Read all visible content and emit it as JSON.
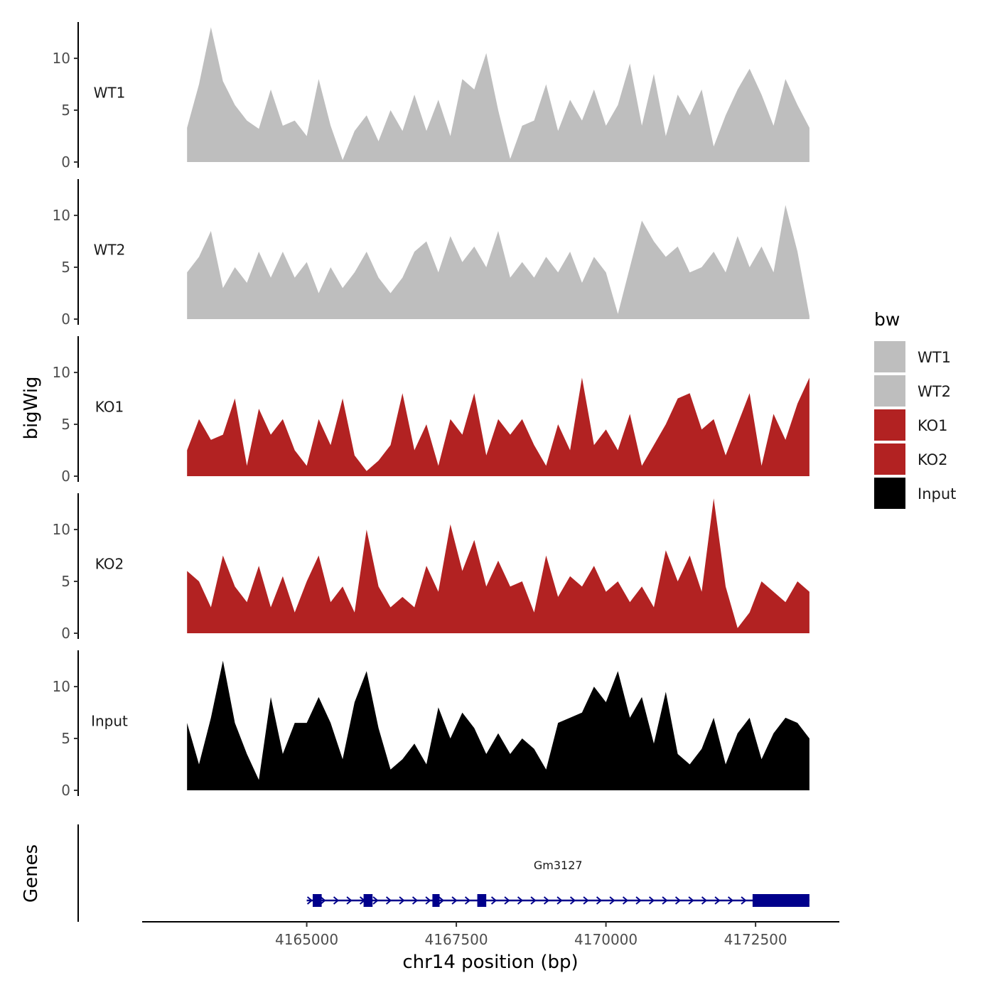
{
  "chart_data": {
    "type": "area",
    "title": "",
    "ylabel": "bigWig",
    "genes_ylabel": "Genes",
    "xlabel": "chr14 position (bp)",
    "xlim": [
      4162250,
      4173900
    ],
    "x_ticks": [
      4165000,
      4167500,
      4170000,
      4172500
    ],
    "x_tick_labels": [
      "4165000",
      "4167500",
      "4170000",
      "4172500"
    ],
    "ylim": [
      0,
      13.5
    ],
    "y_ticks": [
      0,
      5,
      10
    ],
    "y_tick_labels": [
      "0",
      "5",
      "10"
    ],
    "legend": {
      "title": "bw",
      "position": "right",
      "entries": [
        {
          "name": "WT1",
          "color": "#bebebe"
        },
        {
          "name": "WT2",
          "color": "#bebebe"
        },
        {
          "name": "KO1",
          "color": "#b22222"
        },
        {
          "name": "KO2",
          "color": "#b22222"
        },
        {
          "name": "Input",
          "color": "#000000"
        }
      ]
    },
    "series": [
      {
        "name": "WT1",
        "color": "#bebebe",
        "x": [
          4163000,
          4163200,
          4163400,
          4163600,
          4163800,
          4164000,
          4164200,
          4164400,
          4164600,
          4164800,
          4165000,
          4165200,
          4165400,
          4165600,
          4165800,
          4166000,
          4166200,
          4166400,
          4166600,
          4166800,
          4167000,
          4167200,
          4167400,
          4167600,
          4167800,
          4168000,
          4168200,
          4168400,
          4168600,
          4168800,
          4169000,
          4169200,
          4169400,
          4169600,
          4169800,
          4170000,
          4170200,
          4170400,
          4170600,
          4170800,
          4171000,
          4171200,
          4171400,
          4171600,
          4171800,
          4172000,
          4172200,
          4172400,
          4172600,
          4172800,
          4173000,
          4173200,
          4173400
        ],
        "values": [
          3.3,
          7.5,
          13.0,
          7.8,
          5.5,
          4.0,
          3.2,
          7.0,
          3.5,
          4.0,
          2.5,
          8.0,
          3.5,
          0.2,
          3.0,
          4.5,
          2.0,
          5.0,
          3.0,
          6.5,
          3.0,
          6.0,
          2.5,
          8.0,
          7.0,
          10.5,
          5.0,
          0.3,
          3.5,
          4.0,
          7.5,
          3.0,
          6.0,
          4.0,
          7.0,
          3.5,
          5.5,
          9.5,
          3.5,
          8.5,
          2.5,
          6.5,
          4.5,
          7.0,
          1.5,
          4.5,
          7.0,
          9.0,
          6.5,
          3.5,
          8.0,
          5.5,
          3.3
        ]
      },
      {
        "name": "WT2",
        "color": "#bebebe",
        "x": [
          4163000,
          4163200,
          4163400,
          4163600,
          4163800,
          4164000,
          4164200,
          4164400,
          4164600,
          4164800,
          4165000,
          4165200,
          4165400,
          4165600,
          4165800,
          4166000,
          4166200,
          4166400,
          4166600,
          4166800,
          4167000,
          4167200,
          4167400,
          4167600,
          4167800,
          4168000,
          4168200,
          4168400,
          4168600,
          4168800,
          4169000,
          4169200,
          4169400,
          4169600,
          4169800,
          4170000,
          4170200,
          4170400,
          4170600,
          4170800,
          4171000,
          4171200,
          4171400,
          4171600,
          4171800,
          4172000,
          4172200,
          4172400,
          4172600,
          4172800,
          4173000,
          4173200,
          4173400
        ],
        "values": [
          4.5,
          6.0,
          8.5,
          3.0,
          5.0,
          3.5,
          6.5,
          4.0,
          6.5,
          4.0,
          5.5,
          2.5,
          5.0,
          3.0,
          4.5,
          6.5,
          4.0,
          2.5,
          4.0,
          6.5,
          7.5,
          4.5,
          8.0,
          5.5,
          7.0,
          5.0,
          8.5,
          4.0,
          5.5,
          4.0,
          6.0,
          4.5,
          6.5,
          3.5,
          6.0,
          4.5,
          0.5,
          5.0,
          9.5,
          7.5,
          6.0,
          7.0,
          4.5,
          5.0,
          6.5,
          4.5,
          8.0,
          5.0,
          7.0,
          4.5,
          11.0,
          6.5,
          0.3
        ]
      },
      {
        "name": "KO1",
        "color": "#b22222",
        "x": [
          4163000,
          4163200,
          4163400,
          4163600,
          4163800,
          4164000,
          4164200,
          4164400,
          4164600,
          4164800,
          4165000,
          4165200,
          4165400,
          4165600,
          4165800,
          4166000,
          4166200,
          4166400,
          4166600,
          4166800,
          4167000,
          4167200,
          4167400,
          4167600,
          4167800,
          4168000,
          4168200,
          4168400,
          4168600,
          4168800,
          4169000,
          4169200,
          4169400,
          4169600,
          4169800,
          4170000,
          4170200,
          4170400,
          4170600,
          4170800,
          4171000,
          4171200,
          4171400,
          4171600,
          4171800,
          4172000,
          4172200,
          4172400,
          4172600,
          4172800,
          4173000,
          4173200,
          4173400
        ],
        "values": [
          2.5,
          5.5,
          3.5,
          4.0,
          7.5,
          1.0,
          6.5,
          4.0,
          5.5,
          2.5,
          1.0,
          5.5,
          3.0,
          7.5,
          2.0,
          0.5,
          1.5,
          3.0,
          8.0,
          2.5,
          5.0,
          1.0,
          5.5,
          4.0,
          8.0,
          2.0,
          5.5,
          4.0,
          5.5,
          3.0,
          1.0,
          5.0,
          2.5,
          9.5,
          3.0,
          4.5,
          2.5,
          6.0,
          1.0,
          3.0,
          5.0,
          7.5,
          8.0,
          4.5,
          5.5,
          2.0,
          5.0,
          8.0,
          1.0,
          6.0,
          3.5,
          7.0,
          9.5
        ]
      },
      {
        "name": "KO2",
        "color": "#b22222",
        "x": [
          4163000,
          4163200,
          4163400,
          4163600,
          4163800,
          4164000,
          4164200,
          4164400,
          4164600,
          4164800,
          4165000,
          4165200,
          4165400,
          4165600,
          4165800,
          4166000,
          4166200,
          4166400,
          4166600,
          4166800,
          4167000,
          4167200,
          4167400,
          4167600,
          4167800,
          4168000,
          4168200,
          4168400,
          4168600,
          4168800,
          4169000,
          4169200,
          4169400,
          4169600,
          4169800,
          4170000,
          4170200,
          4170400,
          4170600,
          4170800,
          4171000,
          4171200,
          4171400,
          4171600,
          4171800,
          4172000,
          4172200,
          4172400,
          4172600,
          4172800,
          4173000,
          4173200,
          4173400
        ],
        "values": [
          6.0,
          5.0,
          2.5,
          7.5,
          4.5,
          3.0,
          6.5,
          2.5,
          5.5,
          2.0,
          5.0,
          7.5,
          3.0,
          4.5,
          2.0,
          10.0,
          4.5,
          2.5,
          3.5,
          2.5,
          6.5,
          4.0,
          10.5,
          6.0,
          9.0,
          4.5,
          7.0,
          4.5,
          5.0,
          2.0,
          7.5,
          3.5,
          5.5,
          4.5,
          6.5,
          4.0,
          5.0,
          3.0,
          4.5,
          2.5,
          8.0,
          5.0,
          7.5,
          4.0,
          13.0,
          4.5,
          0.5,
          2.0,
          5.0,
          4.0,
          3.0,
          5.0,
          4.0
        ]
      },
      {
        "name": "Input",
        "color": "#000000",
        "x": [
          4163000,
          4163200,
          4163400,
          4163600,
          4163800,
          4164000,
          4164200,
          4164400,
          4164600,
          4164800,
          4165000,
          4165200,
          4165400,
          4165600,
          4165800,
          4166000,
          4166200,
          4166400,
          4166600,
          4166800,
          4167000,
          4167200,
          4167400,
          4167600,
          4167800,
          4168000,
          4168200,
          4168400,
          4168600,
          4168800,
          4169000,
          4169200,
          4169400,
          4169600,
          4169800,
          4170000,
          4170200,
          4170400,
          4170600,
          4170800,
          4171000,
          4171200,
          4171400,
          4171600,
          4171800,
          4172000,
          4172200,
          4172400,
          4172600,
          4172800,
          4173000,
          4173200,
          4173400
        ],
        "values": [
          6.5,
          2.5,
          7.0,
          12.5,
          6.5,
          3.5,
          1.0,
          9.0,
          3.5,
          6.5,
          6.5,
          9.0,
          6.5,
          3.0,
          8.5,
          11.5,
          6.0,
          2.0,
          3.0,
          4.5,
          2.5,
          8.0,
          5.0,
          7.5,
          6.0,
          3.5,
          5.5,
          3.5,
          5.0,
          4.0,
          2.0,
          6.5,
          7.0,
          7.5,
          10.0,
          8.5,
          11.5,
          7.0,
          9.0,
          4.5,
          9.5,
          3.5,
          2.5,
          4.0,
          7.0,
          2.5,
          5.5,
          7.0,
          3.0,
          5.5,
          7.0,
          6.5,
          5.0
        ]
      }
    ],
    "genes": [
      {
        "name": "Gm3127",
        "strand": "+",
        "start": 4165000,
        "end": 4173400,
        "exons": [
          [
            4165100,
            4165250
          ],
          [
            4165950,
            4166100
          ],
          [
            4167100,
            4167220
          ],
          [
            4167850,
            4168000
          ],
          [
            4172450,
            4173400
          ]
        ]
      }
    ]
  }
}
